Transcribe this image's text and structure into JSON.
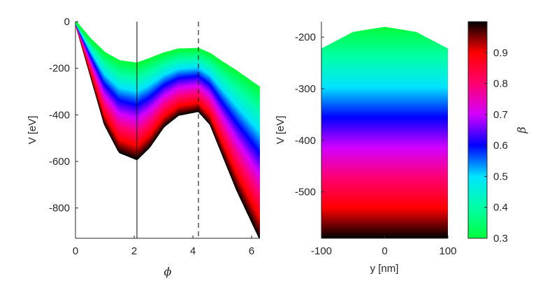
{
  "colors": {
    "axis": "#262626",
    "colormap": [
      {
        "b": 0.3,
        "c": "#00ff3c"
      },
      {
        "b": 0.4,
        "c": "#00ffa6"
      },
      {
        "b": 0.5,
        "c": "#00e4ff"
      },
      {
        "b": 0.6,
        "c": "#0000ff"
      },
      {
        "b": 0.7,
        "c": "#d300ff"
      },
      {
        "b": 0.8,
        "c": "#ff0070"
      },
      {
        "b": 0.9,
        "c": "#ff0000"
      },
      {
        "b": 1.0,
        "c": "#000000"
      }
    ]
  },
  "chart_data": [
    {
      "type": "area",
      "name": "potential-vs-phi",
      "xlabel": "ϕ",
      "ylabel": "V [eV]",
      "xlim": [
        0,
        6.2832
      ],
      "ylim": [
        -930,
        0
      ],
      "xticks": [
        "0",
        "2",
        "4",
        "6"
      ],
      "xtick_values": [
        0,
        2,
        4,
        6
      ],
      "yticks": [
        "0",
        "-200",
        "-400",
        "-600",
        "-800"
      ],
      "ytick_values": [
        0,
        -200,
        -400,
        -600,
        -800
      ],
      "beta_range": [
        0.3,
        1.0
      ],
      "band_note": "family of curves V(ϕ) colored by β from 0.3 (top, green) to 1.0 (bottom, black)",
      "series": [
        {
          "name": "beta=0.3 (top envelope)",
          "x": [
            0,
            0.5,
            1.0,
            1.5,
            2.09,
            2.5,
            3.0,
            3.5,
            4.19,
            4.6,
            5.0,
            5.5,
            6.2832
          ],
          "y": [
            0,
            -75,
            -135,
            -170,
            -180,
            -162,
            -137,
            -120,
            -117,
            -140,
            -175,
            -215,
            -285
          ]
        },
        {
          "name": "beta=1.0 (bottom envelope)",
          "x": [
            0,
            0.5,
            1.0,
            1.5,
            2.09,
            2.5,
            3.0,
            3.5,
            4.19,
            4.6,
            5.0,
            5.5,
            6.2832
          ],
          "y": [
            0,
            -220,
            -440,
            -560,
            -590,
            -540,
            -450,
            -400,
            -383,
            -440,
            -565,
            -720,
            -930
          ]
        }
      ],
      "vlines": [
        {
          "x": 2.094,
          "style": "solid"
        },
        {
          "x": 4.189,
          "style": "dashed"
        }
      ]
    },
    {
      "type": "heatmap",
      "name": "potential-vs-y",
      "xlabel": "y [nm]",
      "ylabel": "V [eV]",
      "xlim": [
        -100,
        100
      ],
      "ylim": [
        -590,
        -170
      ],
      "xticks": [
        "-100",
        "0",
        "100"
      ],
      "xtick_values": [
        -100,
        0,
        100
      ],
      "yticks": [
        "-200",
        "-300",
        "-400",
        "-500"
      ],
      "ytick_values": [
        -200,
        -300,
        -400,
        -500
      ],
      "top_edge": {
        "x": [
          -100,
          -50,
          0,
          50,
          100
        ],
        "y": [
          -222,
          -190,
          -180,
          -190,
          -222
        ]
      },
      "bottom_value": -590
    },
    {
      "type": "heatmap",
      "name": "colorbar",
      "label": "β",
      "range": [
        0.3,
        1.0
      ],
      "ticks": [
        "0.3",
        "0.4",
        "0.5",
        "0.6",
        "0.7",
        "0.8",
        "0.9"
      ],
      "tick_values": [
        0.3,
        0.4,
        0.5,
        0.6,
        0.7,
        0.8,
        0.9
      ]
    }
  ]
}
